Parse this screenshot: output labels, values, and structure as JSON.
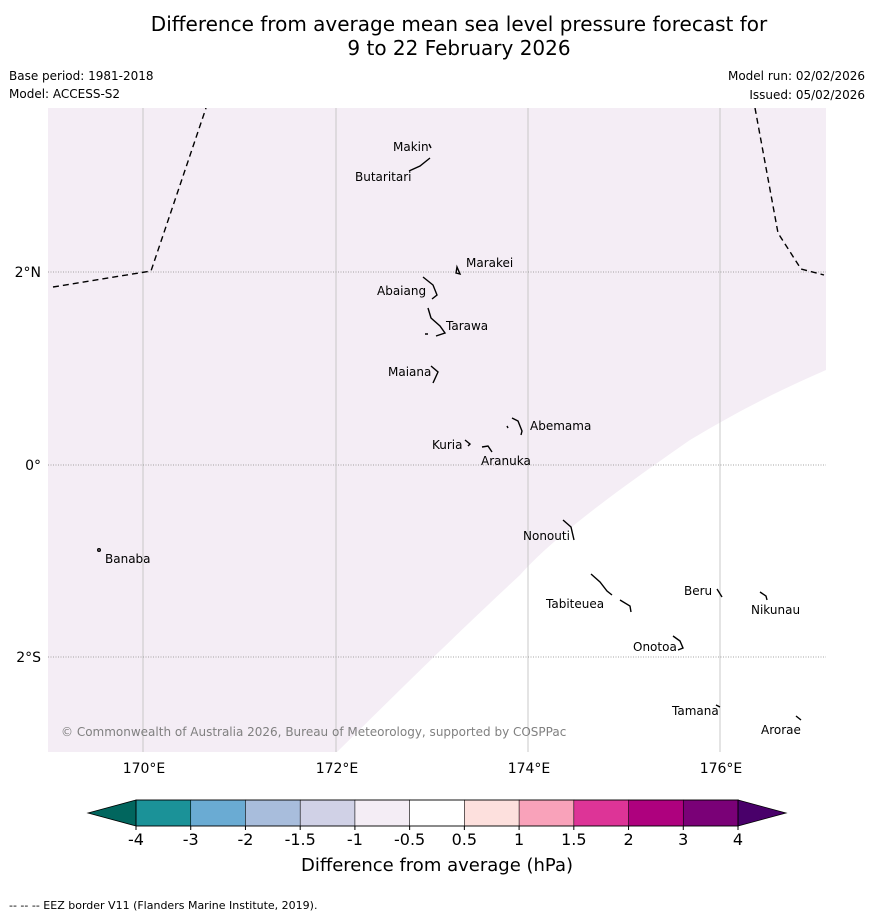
{
  "title_line1": "Difference from average mean sea level pressure forecast for",
  "title_line2": "9 to 22 February 2026",
  "base_period": "Base period: 1981-2018",
  "model": "Model: ACCESS-S2",
  "model_run": "Model run: 02/02/2026",
  "issued": "Issued: 05/02/2026",
  "map": {
    "lon_labels": [
      "170°E",
      "172°E",
      "174°E",
      "176°E"
    ],
    "lat_labels": [
      "2°N",
      "0°",
      "2°S"
    ],
    "copyright": "© Commonwealth of Australia 2026, Bureau of Meteorology, supported by COSPPac",
    "islands": [
      "Makin",
      "Butaritari",
      "Marakei",
      "Abaiang",
      "Tarawa",
      "Maiana",
      "Abemama",
      "Kuria",
      "Aranuka",
      "Nonouti",
      "Banaba",
      "Tabiteuea",
      "Beru",
      "Nikunau",
      "Onotoa",
      "Tamana",
      "Arorae"
    ],
    "shading_category": "-1 to -0.5",
    "shading_color": "#f4edf5"
  },
  "colorbar": {
    "label": "Difference from average (hPa)",
    "ticks": [
      "-4",
      "-3",
      "-2",
      "-1.5",
      "-1",
      "-0.5",
      "0.5",
      "1",
      "1.5",
      "2",
      "3",
      "4"
    ],
    "colors": [
      "#1b9298",
      "#6aabd3",
      "#a8bddc",
      "#d0d1e6",
      "#f4edf5",
      "#ffffff",
      "#fde0dd",
      "#f9a2ba",
      "#dd3497",
      "#ae017e",
      "#7a0177"
    ],
    "under_color": "#01665e",
    "over_color": "#49006a"
  },
  "footnote": "--  --  -- EEZ border V11 (Flanders Marine Institute, 2019)."
}
